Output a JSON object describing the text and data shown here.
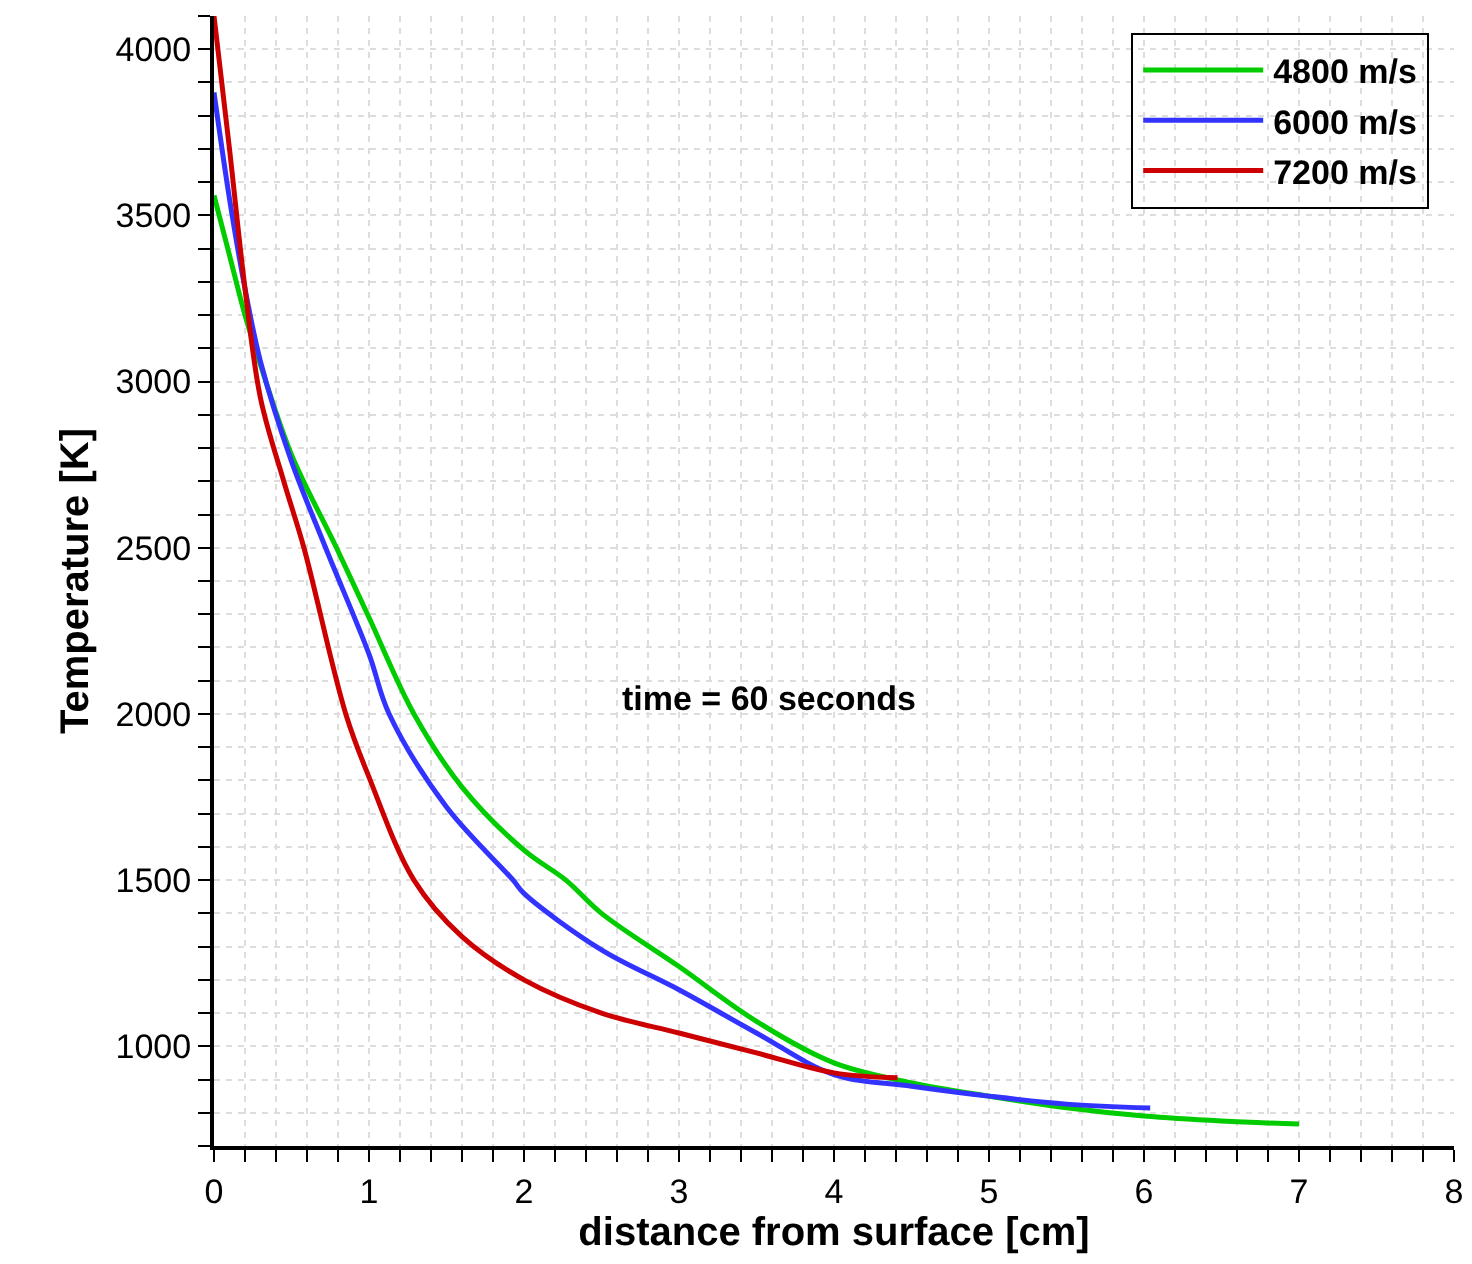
{
  "chart_data": {
    "type": "line",
    "xlabel": "distance from surface [cm]",
    "ylabel": "Temperature [K]",
    "annotations": [
      "time = 60 seconds"
    ],
    "xlim": [
      0,
      8
    ],
    "xticks": [
      0,
      {
        "value": 0.2,
        "label": null
      },
      {
        "value": 0.4,
        "label": null
      },
      {
        "value": 0.6,
        "label": null
      },
      {
        "value": 0.8,
        "label": null
      },
      1,
      {
        "value": 1.2,
        "label": null
      },
      {
        "value": 1.4,
        "label": null
      },
      {
        "value": 1.6,
        "label": null
      },
      {
        "value": 1.8,
        "label": null
      },
      2,
      {
        "value": 2.2,
        "label": null
      },
      {
        "value": 2.4,
        "label": null
      },
      {
        "value": 2.6,
        "label": null
      },
      {
        "value": 2.8,
        "label": null
      },
      3,
      {
        "value": 3.2,
        "label": null
      },
      {
        "value": 3.4,
        "label": null
      },
      {
        "value": 3.6,
        "label": null
      },
      {
        "value": 3.8,
        "label": null
      },
      4,
      {
        "value": 4.2,
        "label": null
      },
      {
        "value": 4.4,
        "label": null
      },
      {
        "value": 4.6,
        "label": null
      },
      {
        "value": 4.8,
        "label": null
      },
      5,
      {
        "value": 5.2,
        "label": null
      },
      {
        "value": 5.4,
        "label": null
      },
      {
        "value": 5.6,
        "label": null
      },
      {
        "value": 5.8,
        "label": null
      },
      6,
      {
        "value": 6.2,
        "label": null
      },
      {
        "value": 6.4,
        "label": null
      },
      {
        "value": 6.6,
        "label": null
      },
      {
        "value": 6.8,
        "label": null
      },
      7,
      {
        "value": 7.2,
        "label": null
      },
      {
        "value": 7.4,
        "label": null
      },
      {
        "value": 7.6,
        "label": null
      },
      {
        "value": 7.8,
        "label": null
      },
      8
    ],
    "ylim": [
      700,
      4100
    ],
    "yticks": [
      {
        "value": 700,
        "label": null
      },
      {
        "value": 800,
        "label": null
      },
      {
        "value": 900,
        "label": null
      },
      1000,
      {
        "value": 1100,
        "label": null
      },
      {
        "value": 1200,
        "label": null
      },
      {
        "value": 1300,
        "label": null
      },
      {
        "value": 1400,
        "label": null
      },
      1500,
      {
        "value": 1600,
        "label": null
      },
      {
        "value": 1700,
        "label": null
      },
      {
        "value": 1800,
        "label": null
      },
      {
        "value": 1900,
        "label": null
      },
      2000,
      {
        "value": 2100,
        "label": null
      },
      {
        "value": 2200,
        "label": null
      },
      {
        "value": 2300,
        "label": null
      },
      {
        "value": 2400,
        "label": null
      },
      2500,
      {
        "value": 2600,
        "label": null
      },
      {
        "value": 2700,
        "label": null
      },
      {
        "value": 2800,
        "label": null
      },
      {
        "value": 2900,
        "label": null
      },
      3000,
      {
        "value": 3100,
        "label": null
      },
      {
        "value": 3200,
        "label": null
      },
      {
        "value": 3300,
        "label": null
      },
      {
        "value": 3400,
        "label": null
      },
      3500,
      {
        "value": 3600,
        "label": null
      },
      {
        "value": 3700,
        "label": null
      },
      {
        "value": 3800,
        "label": null
      },
      {
        "value": 3900,
        "label": null
      },
      4000,
      {
        "value": 4100,
        "label": null
      }
    ],
    "grid": true,
    "legend": "top right",
    "line_style": "solid",
    "marker": "none",
    "series": [
      {
        "name": "4800 m/s",
        "color": "#00cc00",
        "x": [
          0,
          0.1,
          0.2,
          0.3,
          0.5,
          0.79,
          1,
          1.29,
          1.6,
          2,
          2.27,
          2.5,
          3,
          3.5,
          4,
          4.5,
          5,
          5.5,
          6,
          6.5,
          7
        ],
        "values": [
          3560,
          3380,
          3200,
          3050,
          2780,
          2500,
          2290,
          2000,
          1780,
          1590,
          1500,
          1400,
          1240,
          1075,
          950,
          890,
          850,
          815,
          790,
          775,
          766
        ]
      },
      {
        "name": "6000 m/s",
        "color": "#3333ff",
        "x": [
          0,
          0.1,
          0.2,
          0.3,
          0.5,
          0.72,
          1,
          1.13,
          1.5,
          1.93,
          2,
          2.5,
          3,
          3.5,
          4,
          4.5,
          5,
          5.5,
          6.04
        ],
        "values": [
          3870,
          3550,
          3280,
          3060,
          2760,
          2500,
          2180,
          2000,
          1720,
          1500,
          1460,
          1290,
          1170,
          1040,
          915,
          880,
          850,
          826,
          814
        ]
      },
      {
        "name": "7200 m/s",
        "color": "#cc0000",
        "x": [
          0,
          0.1,
          0.2,
          0.3,
          0.45,
          0.58,
          0.85,
          1,
          1.29,
          1.6,
          2,
          2.5,
          3,
          3.5,
          4,
          4.41
        ],
        "values": [
          4100,
          3700,
          3280,
          2950,
          2700,
          2500,
          2000,
          1810,
          1500,
          1330,
          1200,
          1100,
          1040,
          980,
          920,
          905
        ]
      }
    ]
  }
}
